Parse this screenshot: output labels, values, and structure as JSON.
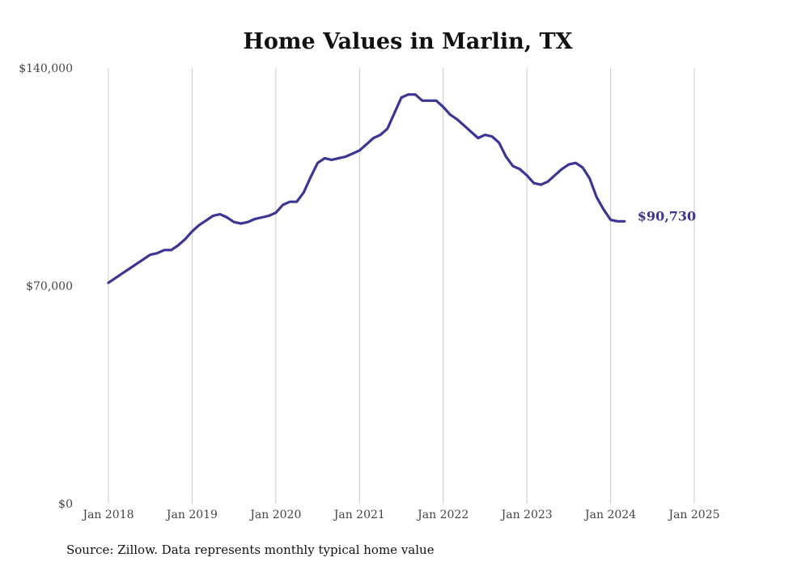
{
  "chart_data": {
    "type": "line",
    "title": "Home Values in Marlin, TX",
    "source": "Source: Zillow. Data represents monthly typical home value",
    "ylim": [
      0,
      140000
    ],
    "yticks": [
      0,
      70000,
      140000
    ],
    "ytick_labels": [
      "$0",
      "$70,000",
      "$140,000"
    ],
    "xtick_labels": [
      "Jan 2018",
      "Jan 2019",
      "Jan 2020",
      "Jan 2021",
      "Jan 2022",
      "Jan 2023",
      "Jan 2024",
      "Jan 2025"
    ],
    "x_start": "Jan 2018",
    "x_end": "Mar 2025",
    "grid": "vertical",
    "line_color": "#3b3594",
    "end_label": "$90,730",
    "series": [
      {
        "values": [
          71000,
          72500,
          74000,
          75500,
          77000,
          78500,
          80000,
          80500,
          81500,
          81500,
          83000,
          85000,
          87500,
          89500,
          91000,
          92500,
          93000,
          92000,
          90500,
          90000,
          90500,
          91500,
          92000,
          92500,
          93500,
          96000,
          97000,
          97000,
          100000,
          105000,
          109500,
          111000,
          110500,
          111000,
          111500,
          112500,
          113500,
          115500,
          117500,
          118500,
          120500,
          125500,
          130500,
          131500,
          131500,
          129500,
          129500,
          129500,
          127500,
          125000,
          123500,
          121500,
          119500,
          117500,
          118500,
          118000,
          116000,
          111500,
          108500,
          107500,
          105500,
          103000,
          102500,
          103500,
          105500,
          107500,
          109000,
          109500,
          108000,
          104500,
          98500,
          94500,
          91200,
          90730,
          90730
        ]
      }
    ]
  }
}
